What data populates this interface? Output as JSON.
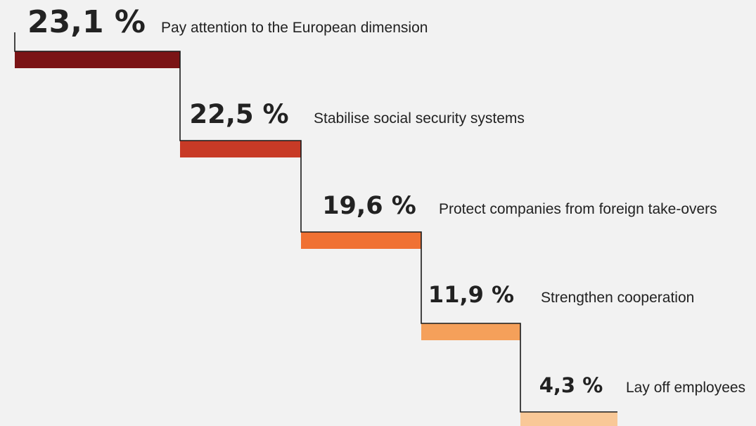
{
  "chart_data": {
    "type": "bar",
    "categories": [
      "Pay attention to the European dimension",
      "Stabilise social security systems",
      "Protect companies from foreign take-overs",
      "Strengthen cooperation",
      "Lay off employees"
    ],
    "values": [
      23.1,
      22.5,
      19.6,
      11.9,
      4.3
    ],
    "value_labels": [
      "23,1 %",
      "22,5 %",
      "19,6 %",
      "11,9 %",
      "4,3 %"
    ],
    "colors": [
      "#7b1416",
      "#c83a26",
      "#f07133",
      "#f5a05a",
      "#f9c897"
    ],
    "line_color": "#1a1a1a"
  }
}
